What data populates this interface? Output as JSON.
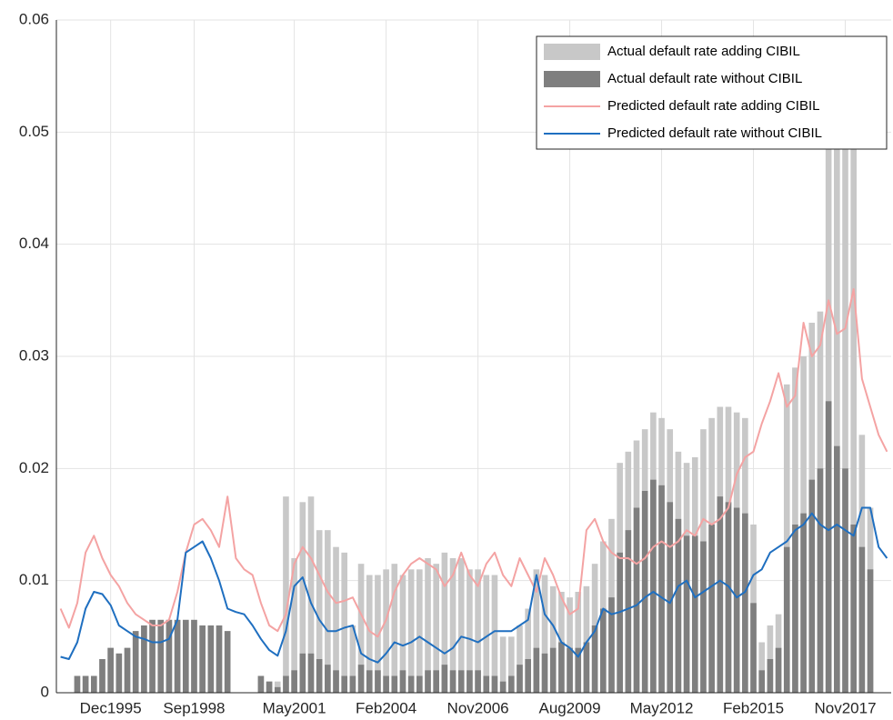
{
  "chart_data": {
    "type": "bar-line",
    "categories": [
      null,
      null,
      null,
      null,
      null,
      null,
      "Dec1995",
      null,
      null,
      null,
      null,
      null,
      null,
      null,
      null,
      null,
      "Sep1998",
      null,
      null,
      null,
      null,
      null,
      null,
      null,
      null,
      null,
      null,
      null,
      "May2001",
      null,
      null,
      null,
      null,
      null,
      null,
      null,
      null,
      null,
      null,
      "Feb2004",
      null,
      null,
      null,
      null,
      null,
      null,
      null,
      null,
      null,
      null,
      "Nov2006",
      null,
      null,
      null,
      null,
      null,
      null,
      null,
      null,
      null,
      null,
      "Aug2009",
      null,
      null,
      null,
      null,
      null,
      null,
      null,
      null,
      null,
      null,
      "May2012",
      null,
      null,
      null,
      null,
      null,
      null,
      null,
      null,
      null,
      null,
      "Feb2015",
      null,
      null,
      null,
      null,
      null,
      null,
      null,
      null,
      null,
      null,
      "Nov2017",
      null,
      null,
      null,
      null,
      null
    ],
    "series": [
      {
        "name": "Actual default rate adding CIBIL",
        "kind": "bar",
        "color": "#c8c8c8",
        "values": [
          null,
          null,
          0.0015,
          0.0015,
          0.0015,
          0.003,
          0.004,
          0.0035,
          0.004,
          0.0055,
          0.006,
          0.0065,
          0.0065,
          0.0065,
          0.0065,
          0.0065,
          0.0065,
          0.006,
          0.006,
          0.006,
          0.0055,
          null,
          null,
          null,
          0.0015,
          0.001,
          0.001,
          0.0175,
          0.012,
          0.017,
          0.0175,
          0.0145,
          0.0145,
          0.013,
          0.0125,
          0.006,
          0.0115,
          0.0105,
          0.0105,
          0.011,
          0.0115,
          0.0105,
          0.011,
          0.011,
          0.012,
          0.0115,
          0.0125,
          0.012,
          0.012,
          0.011,
          0.011,
          0.0105,
          0.0105,
          0.005,
          0.005,
          0.006,
          0.0075,
          0.011,
          0.0105,
          0.0095,
          0.009,
          0.0085,
          0.009,
          0.0095,
          0.0115,
          0.0135,
          0.0155,
          0.0205,
          0.0215,
          0.0225,
          0.0235,
          0.025,
          0.0245,
          0.0235,
          0.0215,
          0.0205,
          0.021,
          0.0235,
          0.0245,
          0.0255,
          0.0255,
          0.025,
          0.0245,
          0.015,
          0.0045,
          0.006,
          0.007,
          0.0275,
          0.029,
          0.03,
          0.033,
          0.034,
          0.05,
          0.058,
          0.052,
          0.049,
          0.023,
          0.0165,
          null,
          null
        ]
      },
      {
        "name": "Actual default rate without CIBIL",
        "kind": "bar",
        "color": "#7f7f7f",
        "values": [
          null,
          null,
          0.0015,
          0.0015,
          0.0015,
          0.003,
          0.004,
          0.0035,
          0.004,
          0.0055,
          0.006,
          0.0065,
          0.0065,
          0.0065,
          0.0065,
          0.0065,
          0.0065,
          0.006,
          0.006,
          0.006,
          0.0055,
          null,
          null,
          null,
          0.0015,
          0.001,
          0.0005,
          0.0015,
          0.002,
          0.0035,
          0.0035,
          0.003,
          0.0025,
          0.002,
          0.0015,
          0.0015,
          0.0025,
          0.002,
          0.002,
          0.0015,
          0.0015,
          0.002,
          0.0015,
          0.0015,
          0.002,
          0.002,
          0.0025,
          0.002,
          0.002,
          0.002,
          0.002,
          0.0015,
          0.0015,
          0.001,
          0.0015,
          0.0025,
          0.003,
          0.004,
          0.0035,
          0.004,
          0.0045,
          0.004,
          0.004,
          0.0045,
          0.006,
          0.0075,
          0.0085,
          0.0125,
          0.0145,
          0.0165,
          0.018,
          0.019,
          0.0185,
          0.017,
          0.0155,
          0.014,
          0.014,
          0.0135,
          0.015,
          0.0175,
          0.017,
          0.0165,
          0.016,
          0.008,
          0.002,
          0.003,
          0.004,
          0.013,
          0.015,
          0.016,
          0.019,
          0.02,
          0.026,
          0.022,
          0.02,
          0.015,
          0.013,
          0.011,
          null,
          null
        ]
      },
      {
        "name": "Predicted default rate adding CIBIL",
        "kind": "line",
        "color": "#f4a3a3",
        "values": [
          0.0075,
          0.0058,
          0.008,
          0.0125,
          0.014,
          0.012,
          0.0105,
          0.0095,
          0.008,
          0.007,
          0.0065,
          0.006,
          0.006,
          0.0065,
          0.009,
          0.0125,
          0.015,
          0.0155,
          0.0145,
          0.013,
          0.0175,
          0.012,
          0.011,
          0.0105,
          0.008,
          0.006,
          0.0055,
          0.007,
          0.0115,
          0.013,
          0.012,
          0.0105,
          0.009,
          0.008,
          0.0082,
          0.0085,
          0.007,
          0.0055,
          0.005,
          0.0065,
          0.009,
          0.0105,
          0.0115,
          0.012,
          0.0115,
          0.011,
          0.0095,
          0.0105,
          0.0125,
          0.0105,
          0.0095,
          0.0115,
          0.0125,
          0.0105,
          0.0095,
          0.012,
          0.0105,
          0.009,
          0.012,
          0.0105,
          0.0085,
          0.007,
          0.0075,
          0.0145,
          0.0155,
          0.0135,
          0.0125,
          0.012,
          0.012,
          0.0115,
          0.012,
          0.013,
          0.0135,
          0.013,
          0.0135,
          0.0145,
          0.014,
          0.0155,
          0.015,
          0.0155,
          0.0165,
          0.0195,
          0.021,
          0.0215,
          0.024,
          0.026,
          0.0285,
          0.0255,
          0.0265,
          0.033,
          0.03,
          0.031,
          0.035,
          0.032,
          0.0325,
          0.036,
          0.028,
          0.0255,
          0.023,
          0.0215
        ]
      },
      {
        "name": "Predicted default rate without CIBIL",
        "kind": "line",
        "color": "#1f6fc0",
        "values": [
          0.0032,
          0.003,
          0.0045,
          0.0075,
          0.009,
          0.0088,
          0.0078,
          0.006,
          0.0055,
          0.005,
          0.0048,
          0.0045,
          0.0045,
          0.0048,
          0.0065,
          0.0125,
          0.013,
          0.0135,
          0.012,
          0.01,
          0.0075,
          0.0072,
          0.007,
          0.006,
          0.0048,
          0.0038,
          0.0033,
          0.0055,
          0.0095,
          0.0103,
          0.008,
          0.0065,
          0.0055,
          0.0055,
          0.0058,
          0.006,
          0.0035,
          0.003,
          0.0027,
          0.0035,
          0.0045,
          0.0042,
          0.0045,
          0.005,
          0.0045,
          0.004,
          0.0035,
          0.004,
          0.005,
          0.0048,
          0.0045,
          0.005,
          0.0055,
          0.0055,
          0.0055,
          0.006,
          0.0065,
          0.0105,
          0.007,
          0.006,
          0.0045,
          0.004,
          0.0032,
          0.0045,
          0.0055,
          0.0075,
          0.007,
          0.0072,
          0.0075,
          0.0078,
          0.0085,
          0.009,
          0.0085,
          0.008,
          0.0095,
          0.01,
          0.0085,
          0.009,
          0.0095,
          0.01,
          0.0095,
          0.0085,
          0.009,
          0.0105,
          0.011,
          0.0125,
          0.013,
          0.0135,
          0.0145,
          0.015,
          0.016,
          0.015,
          0.0145,
          0.015,
          0.0145,
          0.014,
          0.0165,
          0.0165,
          0.013,
          0.012
        ]
      }
    ],
    "ylim": [
      0,
      0.06
    ],
    "yticks": [
      0,
      0.01,
      0.02,
      0.03,
      0.04,
      0.05,
      0.06
    ],
    "grid": true,
    "legend": "upper right"
  }
}
